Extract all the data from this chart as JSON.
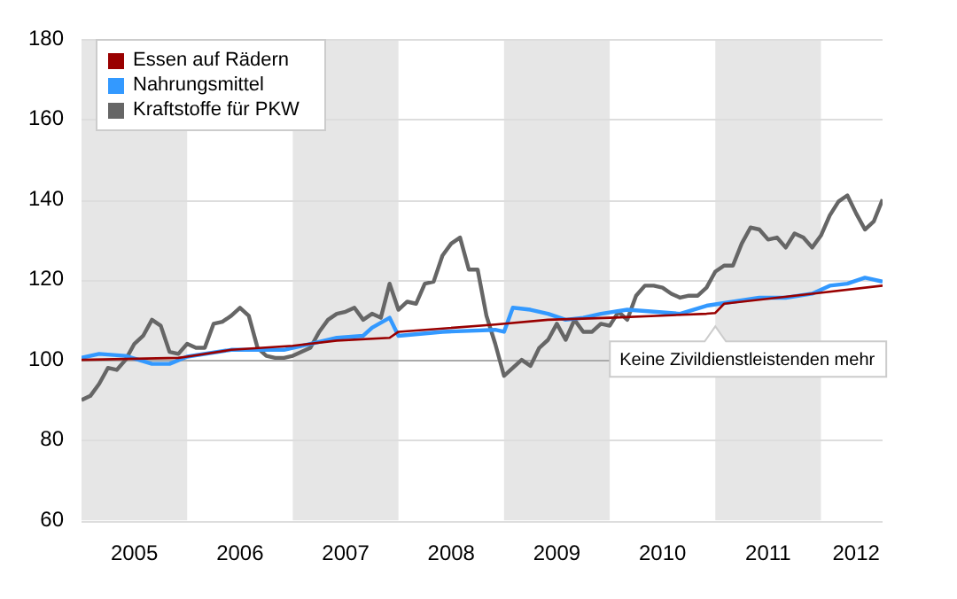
{
  "chart_data": {
    "type": "line",
    "legend": "top left",
    "grid": "y",
    "marker": "none",
    "ylim": [
      60,
      180
    ],
    "yticks": [
      60,
      80,
      100,
      120,
      140,
      160,
      180
    ],
    "xlim": [
      "2005-01",
      "2012-08"
    ],
    "xticks": [
      {
        "value": "2005-07",
        "label": "2005"
      },
      {
        "value": "2006-07",
        "label": "2006"
      },
      {
        "value": "2007-07",
        "label": "2007"
      },
      {
        "value": "2008-07",
        "label": "2008"
      },
      {
        "value": "2009-07",
        "label": "2009"
      },
      {
        "value": "2010-07",
        "label": "2010"
      },
      {
        "value": "2011-07",
        "label": "2011"
      },
      {
        "value": "2012-05",
        "label": "2012"
      }
    ],
    "bands": [
      {
        "axis": "x",
        "from": "2005-01",
        "to": "2006-01",
        "color": "#e6e6e6"
      },
      {
        "axis": "x",
        "from": "2007-01",
        "to": "2008-01",
        "color": "#e6e6e6"
      },
      {
        "axis": "x",
        "from": "2009-01",
        "to": "2010-01",
        "color": "#e6e6e6"
      },
      {
        "axis": "x",
        "from": "2011-01",
        "to": "2012-01",
        "color": "#e6e6e6"
      }
    ],
    "ref_lines": [
      {
        "axis": "y",
        "value": 100,
        "color": "#aaaaaa"
      }
    ],
    "annotations": [
      {
        "text": "Keine Zivildienstleistenden mehr",
        "x": "2011-01",
        "y": 111
      }
    ],
    "series": [
      {
        "name": "Essen auf Rädern",
        "color": "#990000",
        "x": [
          "2005-01",
          "2005-12",
          "2006-01",
          "2006-06",
          "2007-01",
          "2007-06",
          "2007-12",
          "2008-01",
          "2008-12",
          "2009-06",
          "2010-01",
          "2010-12",
          "2011-01",
          "2011-02",
          "2011-12",
          "2012-08"
        ],
        "values": [
          100,
          100.5,
          100.8,
          102.5,
          103.5,
          104.8,
          105.5,
          107,
          108.8,
          110,
          110.5,
          111.5,
          111.7,
          114,
          116.5,
          118.5
        ]
      },
      {
        "name": "Nahrungsmittel",
        "color": "#3399ff",
        "x": [
          "2005-01",
          "2005-03",
          "2005-06",
          "2005-09",
          "2005-11",
          "2006-01",
          "2006-06",
          "2006-12",
          "2007-03",
          "2007-06",
          "2007-09",
          "2007-10",
          "2007-12",
          "2008-01",
          "2008-06",
          "2008-12",
          "2009-01",
          "2009-02",
          "2009-04",
          "2009-06",
          "2009-08",
          "2009-10",
          "2009-12",
          "2010-03",
          "2010-06",
          "2010-09",
          "2010-12",
          "2011-03",
          "2011-06",
          "2011-09",
          "2011-12",
          "2012-02",
          "2012-04",
          "2012-06",
          "2012-08"
        ],
        "values": [
          100.5,
          101.5,
          101,
          99,
          99,
          100.8,
          102.5,
          102.5,
          104,
          105.5,
          106,
          108,
          110.5,
          106,
          107,
          107.5,
          107,
          113,
          112.5,
          111.5,
          110,
          110.5,
          111.5,
          112.5,
          112,
          111.5,
          113.5,
          114.5,
          115.5,
          115.5,
          116.5,
          118.5,
          119,
          120.5,
          119.5
        ]
      },
      {
        "name": "Kraftstoffe für PKW",
        "color": "#666666",
        "x": [
          "2005-01",
          "2005-02",
          "2005-03",
          "2005-04",
          "2005-05",
          "2005-06",
          "2005-07",
          "2005-08",
          "2005-09",
          "2005-10",
          "2005-11",
          "2005-12",
          "2006-01",
          "2006-02",
          "2006-03",
          "2006-04",
          "2006-05",
          "2006-06",
          "2006-07",
          "2006-08",
          "2006-09",
          "2006-10",
          "2006-11",
          "2006-12",
          "2007-01",
          "2007-02",
          "2007-03",
          "2007-04",
          "2007-05",
          "2007-06",
          "2007-07",
          "2007-08",
          "2007-09",
          "2007-10",
          "2007-11",
          "2007-12",
          "2008-01",
          "2008-02",
          "2008-03",
          "2008-04",
          "2008-05",
          "2008-06",
          "2008-07",
          "2008-08",
          "2008-09",
          "2008-10",
          "2008-11",
          "2008-12",
          "2009-01",
          "2009-02",
          "2009-03",
          "2009-04",
          "2009-05",
          "2009-06",
          "2009-07",
          "2009-08",
          "2009-09",
          "2009-10",
          "2009-11",
          "2009-12",
          "2010-01",
          "2010-02",
          "2010-03",
          "2010-04",
          "2010-05",
          "2010-06",
          "2010-07",
          "2010-08",
          "2010-09",
          "2010-10",
          "2010-11",
          "2010-12",
          "2011-01",
          "2011-02",
          "2011-03",
          "2011-04",
          "2011-05",
          "2011-06",
          "2011-07",
          "2011-08",
          "2011-09",
          "2011-10",
          "2011-11",
          "2011-12",
          "2012-01",
          "2012-02",
          "2012-03",
          "2012-04",
          "2012-05",
          "2012-06",
          "2012-07",
          "2012-08"
        ],
        "values": [
          90,
          91,
          94,
          98,
          97.5,
          100,
          104,
          106,
          110,
          108.5,
          102,
          101.5,
          104,
          103,
          103,
          109,
          109.5,
          111,
          113,
          111,
          103,
          101,
          100.5,
          100.5,
          101,
          102,
          103,
          107,
          110,
          111.5,
          112,
          113,
          110,
          111.5,
          110.5,
          119,
          112.5,
          114.5,
          114,
          119,
          119.5,
          126,
          129,
          130.5,
          122.5,
          122.5,
          111,
          104,
          96,
          98,
          100,
          98.5,
          103,
          105,
          109,
          105,
          110,
          107,
          107,
          109,
          108.5,
          112,
          110,
          116,
          118.5,
          118.5,
          118,
          116.5,
          115.5,
          116,
          116,
          118,
          122,
          123.5,
          123.5,
          129,
          133,
          132.5,
          130,
          130.5,
          128,
          131.5,
          130.5,
          128,
          131,
          136,
          139.5,
          141,
          136.5,
          132.5,
          134.5,
          140
        ]
      }
    ]
  }
}
